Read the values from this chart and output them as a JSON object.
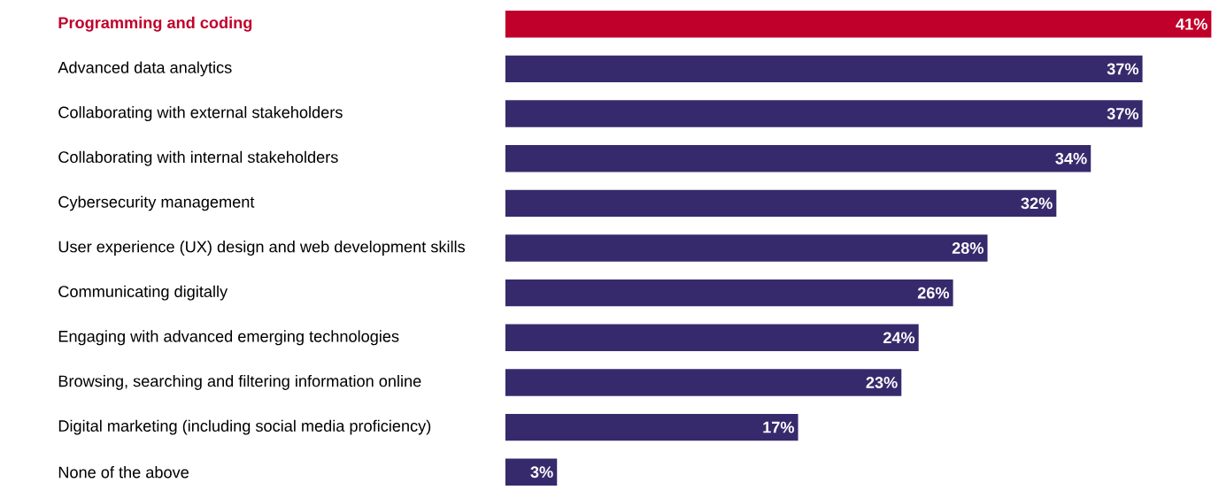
{
  "chart_data": {
    "type": "bar",
    "orientation": "horizontal",
    "categories": [
      "Programming and coding",
      "Advanced data analytics",
      "Collaborating with external stakeholders",
      "Collaborating with internal stakeholders",
      "Cybersecurity management",
      "User experience (UX) design and web development skills",
      "Communicating digitally",
      "Engaging with advanced emerging technologies",
      "Browsing, searching and filtering information online",
      "Digital marketing (including social media proficiency)",
      "None of the above"
    ],
    "values": [
      41,
      37,
      37,
      34,
      32,
      28,
      26,
      24,
      23,
      17,
      3
    ],
    "colors": [
      "#c0002b",
      "#372a6c",
      "#372a6c",
      "#372a6c",
      "#372a6c",
      "#372a6c",
      "#372a6c",
      "#372a6c",
      "#372a6c",
      "#372a6c",
      "#372a6c"
    ],
    "value_labels": [
      "41%",
      "37%",
      "37%",
      "34%",
      "32%",
      "28%",
      "26%",
      "24%",
      "23%",
      "17%",
      "3%"
    ],
    "tick_labels": "y"
  }
}
